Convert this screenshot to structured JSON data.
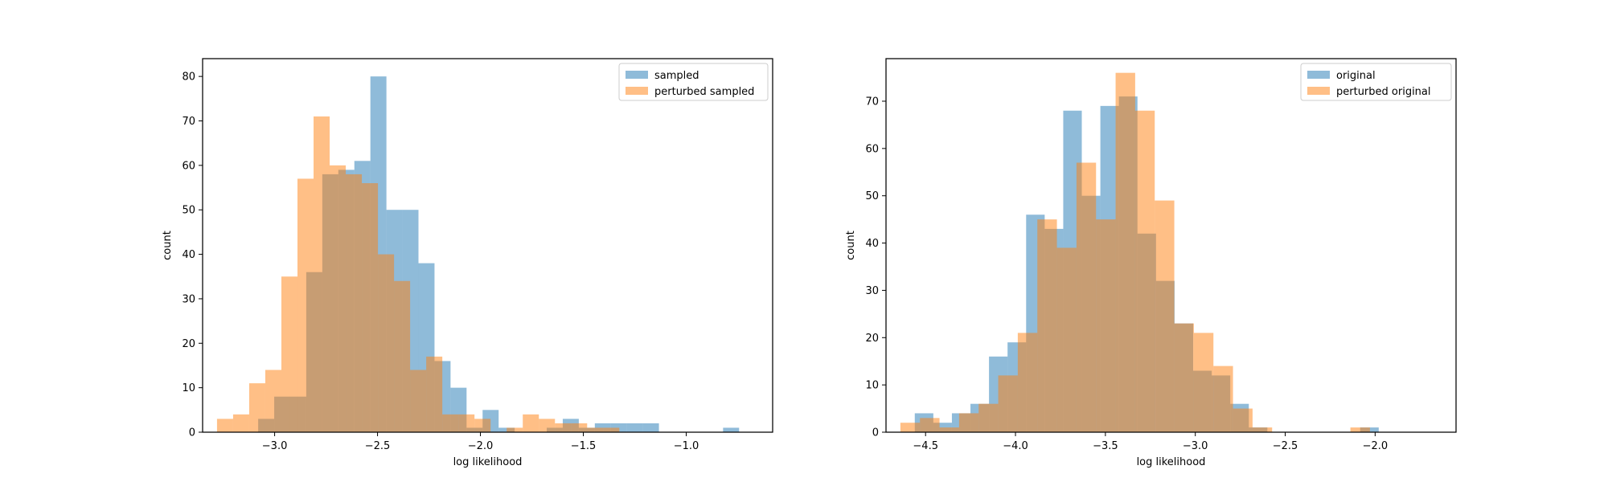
{
  "colors": {
    "series_a": "#1f77b4",
    "series_b": "#ff7f0e",
    "frame": "#000000",
    "legend_border": "#cccccc"
  },
  "chart_data": [
    {
      "type": "bar",
      "subtype": "overlapping-histogram",
      "title": "",
      "xlabel": "log likelihood",
      "ylabel": "count",
      "xlim": [
        -3.35,
        -0.58
      ],
      "ylim": [
        0,
        84
      ],
      "xticks": [
        -3.0,
        -2.5,
        -2.0,
        -1.5,
        -1.0
      ],
      "xtick_labels": [
        "−3.0",
        "−2.5",
        "−2.0",
        "−1.5",
        "−1.0"
      ],
      "yticks": [
        0,
        10,
        20,
        30,
        40,
        50,
        60,
        70,
        80
      ],
      "ytick_labels": [
        "0",
        "10",
        "20",
        "30",
        "40",
        "50",
        "60",
        "70",
        "80"
      ],
      "legend_position": "top-right",
      "series": [
        {
          "name": "sampled",
          "color": "#1f77b4",
          "opacity": 0.5,
          "bin_start": -3.08,
          "bin_width": 0.0779,
          "values": [
            3,
            8,
            8,
            36,
            58,
            59,
            61,
            80,
            50,
            50,
            38,
            16,
            10,
            1,
            5,
            1,
            0,
            0,
            1,
            3,
            1,
            2,
            2,
            2,
            2,
            0,
            0,
            0,
            0,
            1
          ]
        },
        {
          "name": "perturbed sampled",
          "color": "#ff7f0e",
          "opacity": 0.5,
          "bin_start": -3.28,
          "bin_width": 0.0782,
          "values": [
            3,
            4,
            11,
            14,
            35,
            57,
            71,
            60,
            58,
            56,
            40,
            34,
            14,
            17,
            4,
            4,
            3,
            0,
            1,
            4,
            3,
            2,
            2,
            1,
            1,
            0,
            0,
            0,
            0,
            0
          ]
        }
      ]
    },
    {
      "type": "bar",
      "subtype": "overlapping-histogram",
      "title": "",
      "xlabel": "log likelihood",
      "ylabel": "count",
      "xlim": [
        -4.72,
        -1.55
      ],
      "ylim": [
        0,
        79
      ],
      "xticks": [
        -4.5,
        -4.0,
        -3.5,
        -3.0,
        -2.5,
        -2.0
      ],
      "xtick_labels": [
        "−4.5",
        "−4.0",
        "−3.5",
        "−3.0",
        "−2.5",
        "−2.0"
      ],
      "yticks": [
        0,
        10,
        20,
        30,
        40,
        50,
        60,
        70
      ],
      "ytick_labels": [
        "0",
        "10",
        "20",
        "30",
        "40",
        "50",
        "60",
        "70"
      ],
      "legend_position": "top-right",
      "series": [
        {
          "name": "original",
          "color": "#1f77b4",
          "opacity": 0.5,
          "bin_start": -4.56,
          "bin_width": 0.1032,
          "values": [
            4,
            2,
            4,
            6,
            16,
            19,
            46,
            43,
            68,
            50,
            69,
            71,
            42,
            32,
            23,
            13,
            12,
            6,
            1,
            0,
            0,
            0,
            0,
            0,
            1
          ]
        },
        {
          "name": "perturbed original",
          "color": "#ff7f0e",
          "opacity": 0.5,
          "bin_start": -4.64,
          "bin_width": 0.1088,
          "values": [
            2,
            3,
            1,
            4,
            6,
            12,
            21,
            45,
            39,
            57,
            45,
            76,
            68,
            49,
            23,
            21,
            14,
            5,
            1,
            0,
            0,
            0,
            0,
            1
          ]
        }
      ]
    }
  ]
}
